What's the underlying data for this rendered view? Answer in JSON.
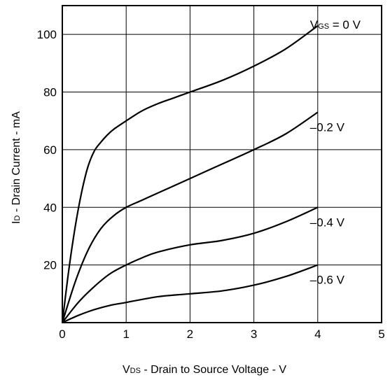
{
  "chart_data": {
    "type": "line",
    "title": "",
    "xlabel": {
      "main": "V",
      "sub": "DS",
      "rest": " - Drain to Source Voltage - V"
    },
    "ylabel": {
      "main": "I",
      "sub": "D",
      "rest": " - Drain Current - mA"
    },
    "xlim": [
      0,
      5
    ],
    "ylim": [
      0,
      110
    ],
    "x_ticks": [
      0,
      1,
      2,
      3,
      4,
      5
    ],
    "x_tick_labels": [
      "0",
      "1",
      "2",
      "3",
      "4",
      "5"
    ],
    "y_ticks": [
      20,
      40,
      60,
      80,
      100
    ],
    "y_tick_labels": [
      "20",
      "40",
      "60",
      "80",
      "100"
    ],
    "origin_label": "0",
    "grid": true,
    "series": [
      {
        "label": {
          "pre": "V",
          "sub": "GS",
          "post": " = 0 V"
        },
        "x": [
          0,
          0.1,
          0.2,
          0.3,
          0.4,
          0.5,
          0.6,
          0.7,
          0.8,
          1.0,
          1.25,
          1.5,
          1.75,
          2.0,
          2.5,
          3.0,
          3.5,
          4.0
        ],
        "y": [
          0,
          18,
          33,
          45,
          54,
          59.5,
          62.5,
          65,
          67,
          70,
          73.5,
          76,
          78,
          80,
          84,
          89,
          95,
          103
        ]
      },
      {
        "label": {
          "pre": "",
          "sub": "",
          "post": "–0.2 V"
        },
        "x": [
          0,
          0.2,
          0.4,
          0.6,
          0.8,
          1.0,
          1.25,
          1.5,
          2.0,
          2.5,
          3.0,
          3.5,
          4.0
        ],
        "y": [
          0,
          14,
          25,
          32.5,
          37,
          40,
          42.5,
          45,
          50,
          55,
          60,
          65.5,
          73
        ]
      },
      {
        "label": {
          "pre": "",
          "sub": "",
          "post": "–0.4 V"
        },
        "x": [
          0,
          0.25,
          0.5,
          0.75,
          1.0,
          1.25,
          1.5,
          2.0,
          2.5,
          3.0,
          3.5,
          4.0
        ],
        "y": [
          0,
          7,
          12.5,
          17,
          20,
          22.5,
          24.5,
          27,
          28.5,
          31,
          35,
          40
        ]
      },
      {
        "label": {
          "pre": "",
          "sub": "",
          "post": "–0.6 V"
        },
        "x": [
          0,
          0.25,
          0.5,
          0.75,
          1.0,
          1.5,
          2.0,
          2.5,
          3.0,
          3.5,
          4.0
        ],
        "y": [
          0,
          2.5,
          4.5,
          6,
          7,
          9,
          10,
          11,
          13,
          16,
          20
        ]
      }
    ]
  }
}
